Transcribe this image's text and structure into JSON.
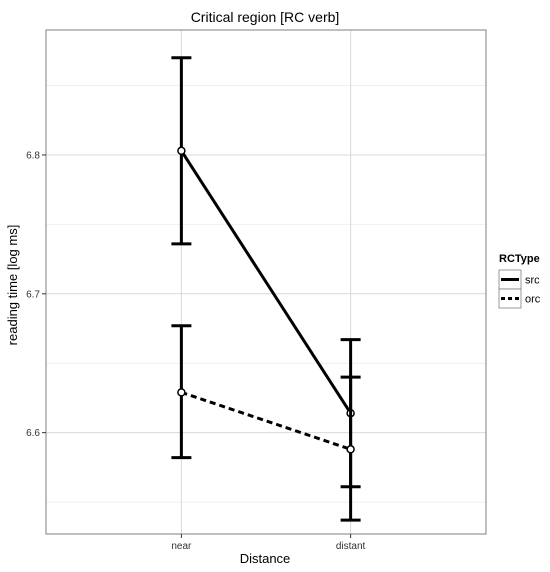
{
  "chart_data": {
    "type": "line",
    "title": "Critical region [RC verb]",
    "xlabel": "Distance",
    "ylabel": "reading time [log ms]",
    "categories": [
      "near",
      "distant"
    ],
    "y_ticks": [
      "6.6",
      "6.7",
      "6.8"
    ],
    "y_tick_values": [
      6.6,
      6.7,
      6.8
    ],
    "ylim": [
      6.527,
      6.89
    ],
    "grid": true,
    "legend": {
      "title": "RCType",
      "position": "right"
    },
    "series": [
      {
        "name": "src",
        "linestyle": "solid",
        "values": [
          6.803,
          6.614
        ],
        "error_lower": [
          6.736,
          6.561
        ],
        "error_upper": [
          6.87,
          6.667
        ]
      },
      {
        "name": "orc",
        "linestyle": "dashed",
        "values": [
          6.629,
          6.588
        ],
        "error_lower": [
          6.582,
          6.537
        ],
        "error_upper": [
          6.677,
          6.64
        ]
      }
    ],
    "colors": {
      "line": "#000000",
      "panel_bg": "#ffffff",
      "panel_border": "#7f7f7f",
      "grid_major": "#d9d9d9",
      "grid_minor": "#efefef"
    }
  }
}
